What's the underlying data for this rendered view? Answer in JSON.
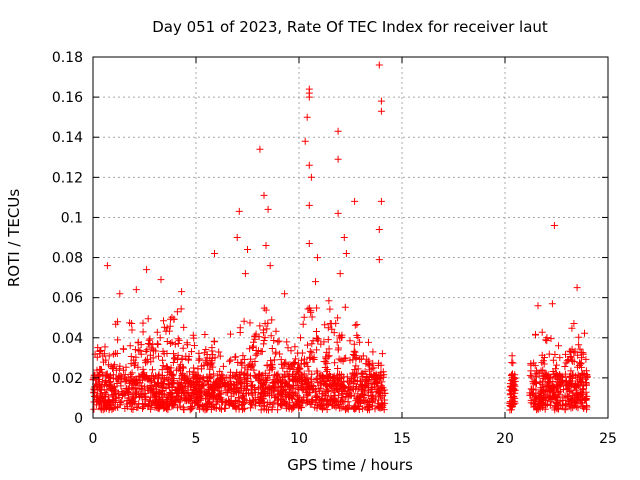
{
  "chart_data": {
    "type": "scatter",
    "title": "Day 051 of 2023, Rate Of TEC Index for receiver laut",
    "xlabel": "GPS time / hours",
    "ylabel": "ROTI / TECUs",
    "xlim": [
      0,
      25
    ],
    "ylim": [
      0,
      0.18
    ],
    "x_ticks": [
      0,
      5,
      10,
      15,
      20,
      25
    ],
    "x_tick_labels": [
      "0",
      "5",
      "10",
      "15",
      "20",
      "25"
    ],
    "y_ticks": [
      0,
      0.02,
      0.04,
      0.06,
      0.08,
      0.1,
      0.12,
      0.14,
      0.16,
      0.18
    ],
    "y_tick_labels": [
      "0",
      "0.02",
      "0.04",
      "0.06",
      "0.08",
      "0.1",
      "0.12",
      "0.14",
      "0.16",
      "0.18"
    ],
    "grid": true,
    "marker": "+",
    "color": "#ff0000",
    "segments": [
      {
        "start": 0.0,
        "end": 14.2
      },
      {
        "start": 20.2,
        "end": 20.5
      },
      {
        "start": 21.2,
        "end": 24.0
      }
    ],
    "envelope": [
      [
        0.0,
        0.04
      ],
      [
        0.5,
        0.045
      ],
      [
        1.0,
        0.042
      ],
      [
        1.5,
        0.048
      ],
      [
        2.0,
        0.045
      ],
      [
        2.5,
        0.055
      ],
      [
        3.0,
        0.05
      ],
      [
        3.5,
        0.048
      ],
      [
        4.0,
        0.052
      ],
      [
        4.5,
        0.05
      ],
      [
        5.0,
        0.04
      ],
      [
        5.5,
        0.045
      ],
      [
        6.0,
        0.045
      ],
      [
        6.5,
        0.038
      ],
      [
        7.0,
        0.042
      ],
      [
        7.5,
        0.046
      ],
      [
        8.0,
        0.06
      ],
      [
        8.5,
        0.055
      ],
      [
        9.0,
        0.04
      ],
      [
        9.5,
        0.035
      ],
      [
        10.0,
        0.038
      ],
      [
        10.5,
        0.055
      ],
      [
        11.0,
        0.05
      ],
      [
        11.5,
        0.055
      ],
      [
        12.0,
        0.06
      ],
      [
        12.5,
        0.05
      ],
      [
        13.0,
        0.04
      ],
      [
        13.5,
        0.035
      ],
      [
        14.0,
        0.035
      ],
      [
        14.2,
        0.03
      ],
      [
        20.2,
        0.03
      ],
      [
        20.5,
        0.025
      ],
      [
        21.2,
        0.035
      ],
      [
        21.5,
        0.038
      ],
      [
        22.0,
        0.04
      ],
      [
        22.5,
        0.04
      ],
      [
        23.0,
        0.04
      ],
      [
        23.5,
        0.048
      ],
      [
        24.0,
        0.038
      ]
    ],
    "notable_points": [
      {
        "x": 13.9,
        "y": 0.176
      },
      {
        "x": 10.5,
        "y": 0.164
      },
      {
        "x": 10.5,
        "y": 0.162
      },
      {
        "x": 10.5,
        "y": 0.16
      },
      {
        "x": 14.0,
        "y": 0.158
      },
      {
        "x": 14.0,
        "y": 0.153
      },
      {
        "x": 10.4,
        "y": 0.15
      },
      {
        "x": 11.9,
        "y": 0.143
      },
      {
        "x": 10.3,
        "y": 0.138
      },
      {
        "x": 8.1,
        "y": 0.134
      },
      {
        "x": 11.9,
        "y": 0.129
      },
      {
        "x": 10.5,
        "y": 0.126
      },
      {
        "x": 10.6,
        "y": 0.12
      },
      {
        "x": 8.3,
        "y": 0.111
      },
      {
        "x": 14.0,
        "y": 0.108
      },
      {
        "x": 12.7,
        "y": 0.108
      },
      {
        "x": 10.5,
        "y": 0.106
      },
      {
        "x": 8.5,
        "y": 0.104
      },
      {
        "x": 7.1,
        "y": 0.103
      },
      {
        "x": 11.9,
        "y": 0.102
      },
      {
        "x": 22.4,
        "y": 0.096
      },
      {
        "x": 13.9,
        "y": 0.094
      },
      {
        "x": 7.0,
        "y": 0.09
      },
      {
        "x": 12.2,
        "y": 0.09
      },
      {
        "x": 10.5,
        "y": 0.087
      },
      {
        "x": 8.4,
        "y": 0.086
      },
      {
        "x": 7.5,
        "y": 0.084
      },
      {
        "x": 5.9,
        "y": 0.082
      },
      {
        "x": 12.3,
        "y": 0.082
      },
      {
        "x": 10.9,
        "y": 0.08
      },
      {
        "x": 13.9,
        "y": 0.079
      },
      {
        "x": 0.7,
        "y": 0.076
      },
      {
        "x": 8.6,
        "y": 0.076
      },
      {
        "x": 2.6,
        "y": 0.074
      },
      {
        "x": 7.4,
        "y": 0.072
      },
      {
        "x": 12.0,
        "y": 0.072
      },
      {
        "x": 3.3,
        "y": 0.069
      },
      {
        "x": 10.8,
        "y": 0.068
      },
      {
        "x": 23.5,
        "y": 0.065
      },
      {
        "x": 2.1,
        "y": 0.064
      },
      {
        "x": 4.3,
        "y": 0.063
      },
      {
        "x": 1.3,
        "y": 0.062
      },
      {
        "x": 9.3,
        "y": 0.062
      },
      {
        "x": 22.3,
        "y": 0.057
      },
      {
        "x": 21.6,
        "y": 0.056
      }
    ]
  }
}
